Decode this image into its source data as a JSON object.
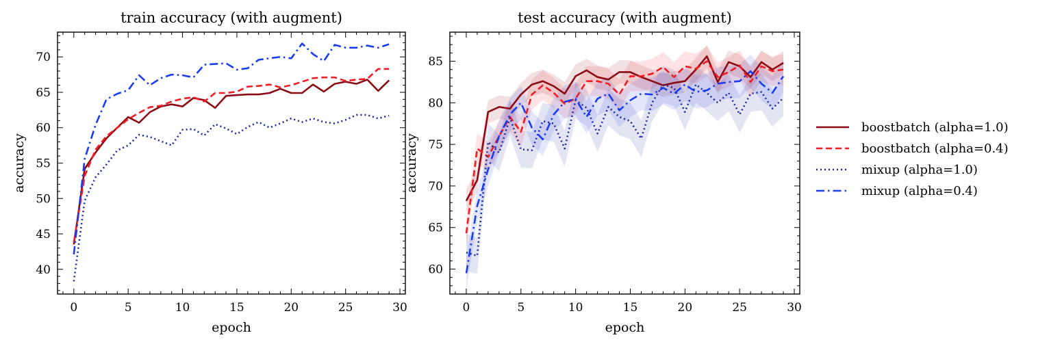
{
  "chart_data": [
    {
      "type": "line",
      "title": "train accuracy (with augment)",
      "xlabel": "epoch",
      "ylabel": "accuracy",
      "xlim": [
        -1.5,
        30.5
      ],
      "ylim": [
        36.5,
        73.5
      ],
      "xticks": [
        0,
        5,
        10,
        15,
        20,
        25,
        30
      ],
      "yticks": [
        40,
        45,
        50,
        55,
        60,
        65,
        70
      ],
      "x": [
        0,
        1,
        2,
        3,
        4,
        5,
        6,
        7,
        8,
        9,
        10,
        11,
        12,
        13,
        14,
        15,
        16,
        17,
        18,
        19,
        20,
        21,
        22,
        23,
        24,
        25,
        26,
        27,
        28,
        29
      ],
      "series": [
        {
          "name": "boostbatch (alpha=1.0)",
          "color": "#8b0a14",
          "dash": "solid",
          "values": [
            43.5,
            54.2,
            56.5,
            58.5,
            60.0,
            61.5,
            60.7,
            62.2,
            63.0,
            63.3,
            63.0,
            64.2,
            63.9,
            62.8,
            64.5,
            64.6,
            64.7,
            64.7,
            64.9,
            65.5,
            64.9,
            64.9,
            66.1,
            65.1,
            66.2,
            66.5,
            66.2,
            66.8,
            65.2,
            66.7
          ]
        },
        {
          "name": "boostbatch (alpha=0.4)",
          "color": "#f01c24",
          "dash": "dashed",
          "values": [
            43.8,
            53.2,
            56.9,
            58.8,
            60.0,
            61.2,
            62.1,
            62.9,
            63.1,
            63.7,
            64.1,
            64.3,
            63.7,
            64.9,
            64.9,
            65.1,
            65.8,
            65.9,
            66.1,
            65.7,
            66.0,
            66.5,
            67.0,
            67.1,
            67.1,
            66.6,
            66.8,
            66.9,
            68.3,
            68.3
          ]
        },
        {
          "name": "mixup (alpha=1.0)",
          "color": "#1f2a9a",
          "dash": "dotted",
          "values": [
            38.3,
            49.7,
            53.0,
            54.8,
            56.8,
            57.5,
            59.0,
            58.7,
            58.1,
            57.5,
            59.7,
            59.8,
            58.9,
            60.5,
            59.9,
            59.1,
            60.1,
            60.8,
            60.0,
            60.6,
            61.3,
            60.8,
            61.3,
            60.8,
            60.6,
            61.1,
            61.8,
            61.8,
            61.3,
            61.7
          ]
        },
        {
          "name": "mixup (alpha=0.4)",
          "color": "#1a3cf0",
          "dash": "dashdot",
          "values": [
            42.1,
            55.6,
            60.4,
            64.0,
            64.8,
            65.3,
            67.4,
            66.0,
            67.0,
            67.5,
            67.4,
            67.1,
            68.9,
            69.0,
            69.1,
            68.2,
            68.4,
            69.6,
            69.8,
            70.0,
            69.8,
            71.9,
            70.4,
            69.4,
            71.7,
            71.3,
            71.3,
            71.6,
            71.3,
            71.8
          ]
        }
      ]
    },
    {
      "type": "line",
      "title": "test accuracy (with augment)",
      "xlabel": "epoch",
      "ylabel": "accuracy",
      "xlim": [
        -1.5,
        30.5
      ],
      "ylim": [
        57.0,
        88.5
      ],
      "xticks": [
        0,
        5,
        10,
        15,
        20,
        25,
        30
      ],
      "yticks": [
        60,
        65,
        70,
        75,
        80,
        85
      ],
      "x": [
        0,
        1,
        2,
        3,
        4,
        5,
        6,
        7,
        8,
        9,
        10,
        11,
        12,
        13,
        14,
        15,
        16,
        17,
        18,
        19,
        20,
        21,
        22,
        23,
        24,
        25,
        26,
        27,
        28,
        29
      ],
      "series": [
        {
          "name": "boostbatch (alpha=1.0)",
          "color": "#8b0a14",
          "dash": "solid",
          "values": [
            68.2,
            70.7,
            78.9,
            79.5,
            79.3,
            81.0,
            82.2,
            82.6,
            82.0,
            81.1,
            83.2,
            83.9,
            83.1,
            82.8,
            83.7,
            83.7,
            83.1,
            82.6,
            82.1,
            82.4,
            82.6,
            84.0,
            85.6,
            82.5,
            84.9,
            84.4,
            83.1,
            84.9,
            84.0,
            84.8
          ],
          "band": 1.4
        },
        {
          "name": "boostbatch (alpha=0.4)",
          "color": "#f01c24",
          "dash": "dashed",
          "values": [
            64.3,
            74.5,
            73.5,
            76.0,
            78.3,
            76.5,
            81.0,
            82.1,
            81.2,
            79.9,
            80.5,
            82.6,
            82.6,
            82.3,
            81.0,
            83.2,
            83.2,
            83.5,
            84.3,
            83.1,
            84.4,
            84.1,
            85.0,
            83.1,
            83.7,
            84.5,
            82.5,
            84.4,
            83.8,
            84.0
          ],
          "band": 1.8
        },
        {
          "name": "mixup (alpha=1.0)",
          "color": "#1f2a9a",
          "dash": "dotted",
          "values": [
            62.0,
            61.6,
            75.3,
            74.0,
            78.2,
            74.4,
            74.3,
            77.8,
            77.5,
            74.5,
            80.3,
            79.4,
            76.3,
            79.5,
            78.3,
            77.8,
            75.7,
            80.0,
            82.2,
            81.8,
            78.9,
            82.2,
            81.2,
            80.0,
            81.2,
            78.6,
            81.1,
            81.3,
            79.3,
            80.6
          ],
          "band": 2.2
        },
        {
          "name": "mixup (alpha=0.4)",
          "color": "#1a3cf0",
          "dash": "dashdot",
          "values": [
            59.5,
            67.6,
            72.0,
            76.0,
            78.6,
            80.0,
            77.0,
            75.6,
            78.6,
            80.1,
            80.5,
            78.3,
            80.5,
            81.1,
            79.1,
            80.3,
            81.1,
            81.0,
            81.8,
            81.1,
            82.2,
            81.3,
            81.5,
            82.3,
            82.5,
            82.6,
            83.8,
            82.3,
            81.2,
            83.2
          ],
          "band": 2.0
        }
      ]
    }
  ],
  "legend": {
    "placement": "right",
    "entries": [
      "boostbatch (alpha=1.0)",
      "boostbatch (alpha=0.4)",
      "mixup (alpha=1.0)",
      "mixup (alpha=0.4)"
    ]
  }
}
